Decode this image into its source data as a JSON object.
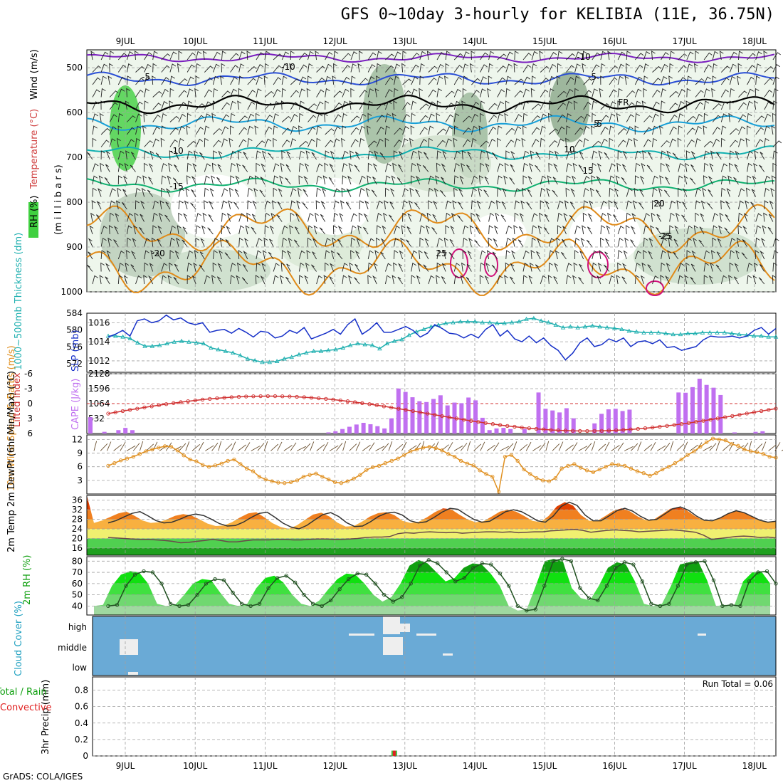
{
  "title": "GFS 0~10day 3-hourly for KELIBIA (11E, 36.75N)",
  "footer": "GrADS: COLA/IGES",
  "colors": {
    "temp_cold": "#7a1fbf",
    "temp_blue": "#2b4fd6",
    "temp_freeze": "#000000",
    "temp_cyan": "#1aa0d8",
    "temp_teal": "#10b0b0",
    "temp_green": "#10b070",
    "temp_orange": "#e08a18",
    "temp_magenta": "#d0107a",
    "slp": "#1630c8",
    "thickness": "#20b0b0",
    "lifted": "#d03030",
    "cape": "#c070f0",
    "wind10": "#e09020",
    "cloud": "#6aaad6",
    "rh_dark": "#109010",
    "rh_light": "#aad8a0"
  },
  "chart_data": [
    {
      "type": "heatmap",
      "name": "upper-air",
      "ylabel_parts": [
        "RH (%)",
        "Temperature (°C)",
        "Wind (m/s)",
        "(m i l l i b a r s)"
      ],
      "x_dates": [
        "9JUL",
        "10JUL",
        "11JUL",
        "12JUL",
        "13JUL",
        "14JUL",
        "15JUL",
        "16JUL",
        "17JUL",
        "18JUL"
      ],
      "y_ticks": [
        500,
        600,
        700,
        800,
        900,
        1000
      ],
      "ylim": [
        460,
        1000
      ],
      "contour_labels": [
        "-10",
        "-10",
        "-5",
        "-5",
        "FR",
        "-5",
        "5",
        "-10",
        "10",
        "10",
        "-15",
        "15",
        "-20",
        "20",
        "-25",
        "25",
        "25",
        "20"
      ]
    },
    {
      "type": "line",
      "name": "slp-thickness",
      "ylabel_left": "1000~500mb Thickness (dm)",
      "ylabel_right": "SLP (mb)",
      "left_ticks": [
        572,
        576,
        580,
        584
      ],
      "right_ticks": [
        1012,
        1014,
        1016
      ],
      "slp": [
        1014.5,
        1014.8,
        1015.2,
        1014.6,
        1016.2,
        1016.4,
        1016.0,
        1016.2,
        1016.8,
        1016.3,
        1016.5,
        1016.0,
        1015.8,
        1016.0,
        1015.0,
        1015.2,
        1015.3,
        1014.9,
        1015.4,
        1015.0,
        1014.5,
        1015.1,
        1015.0,
        1014.4,
        1014.6,
        1015.2,
        1014.9,
        1015.5,
        1014.3,
        1014.6,
        1014.9,
        1015.3,
        1014.8,
        1015.8,
        1016.4,
        1014.8,
        1015.3,
        1016.0,
        1015.0,
        1015.0,
        1015.3,
        1015.6,
        1015.2,
        1014.5,
        1014.9,
        1015.8,
        1015.4,
        1014.9,
        1014.8,
        1014.4,
        1014.8,
        1014.4,
        1015.3,
        1015.8,
        1014.6,
        1015.2,
        1014.3,
        1014.0,
        1014.6,
        1013.9,
        1014.4,
        1013.6,
        1013.1,
        1012.1,
        1012.8,
        1013.9,
        1014.4,
        1013.5,
        1013.7,
        1014.3,
        1014.0,
        1014.4,
        1013.5,
        1014.0,
        1014.1,
        1013.8,
        1014.2,
        1013.4,
        1013.5,
        1013.1,
        1013.3,
        1013.5,
        1014.2,
        1014.6,
        1014.5,
        1014.5,
        1014.6,
        1014.4,
        1014.6,
        1015.2,
        1015.5,
        1014.8,
        1015.4
      ],
      "thickness": [
        578.6,
        578.6,
        578.4,
        578.0,
        577.0,
        576.2,
        576.2,
        576.4,
        576.8,
        577.2,
        577.4,
        577.2,
        577.0,
        576.8,
        575.8,
        575.4,
        575.0,
        574.6,
        574.0,
        573.2,
        572.8,
        572.4,
        572.4,
        572.6,
        573.2,
        573.6,
        574.2,
        574.6,
        575.0,
        575.0,
        575.2,
        575.4,
        575.8,
        576.4,
        576.8,
        576.6,
        576.4,
        575.6,
        576.8,
        577.4,
        577.8,
        578.8,
        579.6,
        580.2,
        580.8,
        581.2,
        581.6,
        581.8,
        582.0,
        582.0,
        582.0,
        581.8,
        581.8,
        581.6,
        581.6,
        581.8,
        582.0,
        582.6,
        582.8,
        582.2,
        581.8,
        581.2,
        580.6,
        580.8,
        580.6,
        580.8,
        581.0,
        580.8,
        580.6,
        580.4,
        580.2,
        579.8,
        579.6,
        579.4,
        579.4,
        579.4,
        579.2,
        579.0,
        579.0,
        579.2,
        579.2,
        579.4,
        579.4,
        579.4,
        579.4,
        579.2,
        579.0,
        578.8,
        578.6,
        578.6,
        578.4,
        578.4
      ]
    },
    {
      "type": "bar",
      "name": "cape-lifted",
      "ylabel_left": "Lifted Index",
      "ylabel_right": "CAPE (J/kg)",
      "left_ticks": [
        -6,
        -3,
        0,
        3,
        6
      ],
      "right_ticks": [
        532,
        1064,
        1596,
        2128
      ],
      "cape": [
        580,
        0,
        60,
        0,
        120,
        200,
        120,
        0,
        0,
        0,
        0,
        0,
        0,
        0,
        0,
        0,
        0,
        0,
        0,
        0,
        0,
        0,
        0,
        0,
        0,
        0,
        0,
        0,
        0,
        0,
        0,
        0,
        0,
        0,
        40,
        80,
        160,
        240,
        320,
        380,
        330,
        260,
        180,
        540,
        1600,
        1480,
        1290,
        1150,
        1120,
        1230,
        1360,
        1000,
        1100,
        1080,
        1280,
        1180,
        560,
        120,
        180,
        200,
        160,
        0,
        160,
        0,
        1460,
        880,
        820,
        750,
        900,
        540,
        0,
        0,
        360,
        700,
        860,
        880,
        800,
        850,
        0,
        0,
        0,
        0,
        0,
        0,
        1460,
        1450,
        1650,
        1950,
        1730,
        1630,
        1370,
        0,
        40,
        0,
        0,
        60,
        80,
        0
      ]
    },
    {
      "type": "line",
      "name": "wind10m",
      "ylabel": "10m Wind Speed & Barbs (m/s)",
      "y_ticks": [
        3,
        6,
        9,
        12
      ],
      "speed": [
        6.2,
        6.8,
        7.4,
        7.8,
        8.2,
        8.8,
        9.4,
        9.8,
        10.2,
        10.5,
        10.4,
        9.6,
        8.5,
        7.6,
        7.2,
        6.4,
        6.0,
        6.3,
        6.7,
        7.3,
        7.6,
        6.6,
        5.6,
        5.0,
        3.8,
        3.2,
        2.8,
        2.5,
        2.4,
        2.6,
        3.0,
        3.8,
        4.2,
        4.5,
        3.8,
        3.2,
        2.6,
        2.4,
        2.8,
        3.4,
        4.2,
        5.3,
        5.9,
        6.2,
        6.8,
        7.3,
        7.8,
        8.6,
        9.4,
        9.8,
        10.2,
        10.4,
        10.1,
        9.6,
        8.8,
        8.2,
        7.3,
        6.7,
        6.3,
        5.2,
        4.4,
        3.8,
        0.5,
        8.2,
        8.6,
        7.3,
        5.4,
        4.4,
        3.5,
        3.0,
        2.8,
        3.5,
        5.6,
        6.2,
        6.6,
        5.8,
        5.2,
        4.8,
        5.4,
        6.0,
        6.6,
        6.4,
        6.2,
        5.6,
        5.0,
        4.6,
        4.0,
        4.6,
        5.4,
        6.0,
        6.8,
        7.6,
        8.6,
        9.4,
        10.4,
        11.4,
        12.2,
        12.0,
        11.8,
        11.0,
        10.6,
        9.8,
        9.4,
        9.2,
        8.8,
        8.2,
        8.0
      ]
    },
    {
      "type": "area",
      "name": "temp2m",
      "ylabel": "2m Temp 2m DewPt (6hr Min/Max) (°C)",
      "y_ticks": [
        16,
        20,
        24,
        28,
        32,
        36
      ],
      "temp": [
        26.5,
        27.5,
        29.0,
        30.5,
        31.2,
        29.5,
        27.5,
        26.5,
        26.8,
        28.0,
        29.5,
        30.2,
        29.6,
        28.0,
        26.2,
        25.2,
        25.4,
        26.8,
        28.8,
        30.5,
        31.0,
        28.8,
        26.4,
        24.8,
        24.0,
        25.5,
        27.8,
        30.0,
        30.8,
        29.2,
        26.6,
        25.0,
        25.2,
        27.0,
        29.2,
        30.6,
        31.0,
        29.8,
        27.4,
        26.5,
        27.0,
        28.8,
        31.0,
        32.6,
        32.2,
        30.0,
        28.0,
        26.8,
        27.2,
        29.2,
        31.2,
        32.0,
        31.2,
        29.4,
        27.4,
        26.8,
        29.4,
        33.4,
        35.2,
        33.8,
        29.8,
        27.4,
        27.4,
        29.4,
        31.6,
        32.6,
        31.4,
        29.2,
        27.6,
        28.0,
        30.2,
        32.4,
        33.2,
        31.8,
        29.4,
        27.6,
        27.4,
        28.6,
        30.4,
        31.6,
        30.8,
        29.2,
        27.6,
        26.8,
        27.2
      ],
      "dewpt": [
        20.4,
        20.2,
        20.0,
        19.8,
        19.6,
        19.6,
        19.4,
        19.2,
        18.8,
        18.2,
        18.4,
        18.8,
        19.2,
        19.6,
        19.2,
        18.6,
        18.6,
        19.0,
        19.4,
        19.4,
        19.4,
        19.6,
        19.6,
        19.4,
        19.4,
        19.6,
        19.8,
        19.8,
        19.6,
        19.6,
        19.8,
        20.0,
        20.4,
        20.6,
        20.6,
        20.8,
        22.0,
        22.4,
        22.2,
        22.6,
        22.8,
        22.6,
        22.4,
        22.6,
        22.2,
        22.4,
        22.6,
        22.8,
        22.8,
        22.6,
        22.8,
        22.4,
        22.6,
        22.8,
        22.8,
        23.2,
        23.4,
        23.6,
        23.8,
        23.4,
        22.6,
        23.0,
        23.4,
        23.6,
        23.4,
        23.2,
        22.8,
        23.0,
        23.2,
        23.4,
        23.6,
        23.4,
        23.0,
        22.6,
        21.4,
        19.6,
        20.0,
        20.4,
        20.8,
        21.0,
        20.8,
        20.4,
        20.6,
        20.2
      ]
    },
    {
      "type": "area",
      "name": "rh2m",
      "ylabel": "2m RH (%)",
      "y_ticks": [
        40,
        50,
        60,
        70,
        80
      ],
      "rh": [
        40,
        41,
        58,
        68,
        71,
        70,
        60,
        42,
        40,
        41,
        50,
        60,
        64,
        63,
        52,
        42,
        40,
        42,
        56,
        65,
        67,
        61,
        50,
        42,
        40,
        45,
        55,
        64,
        69,
        68,
        60,
        50,
        44,
        48,
        60,
        76,
        81,
        78,
        70,
        62,
        65,
        74,
        78,
        77,
        69,
        58,
        40,
        36,
        37,
        58,
        80,
        82,
        80,
        56,
        47,
        45,
        58,
        74,
        79,
        77,
        62,
        42,
        40,
        42,
        58,
        77,
        79,
        80,
        63,
        40,
        41,
        40,
        62,
        70,
        71,
        60
      ]
    },
    {
      "type": "heatmap",
      "name": "cloud-cover",
      "ylabel": "Cloud Cover (%)",
      "row_labels": [
        "high",
        "middle",
        "low"
      ]
    },
    {
      "type": "bar",
      "name": "precip",
      "ylabel_left": "Total / Rain",
      "ylabel_left2": "Convective",
      "ylabel": "3hr Precip (mm)",
      "y_ticks": [
        0,
        0.2,
        0.4,
        0.6,
        0.8
      ],
      "run_total": "Run Total = 0.06",
      "bars": [
        {
          "at": 4.42,
          "value": 0.03
        }
      ]
    }
  ]
}
